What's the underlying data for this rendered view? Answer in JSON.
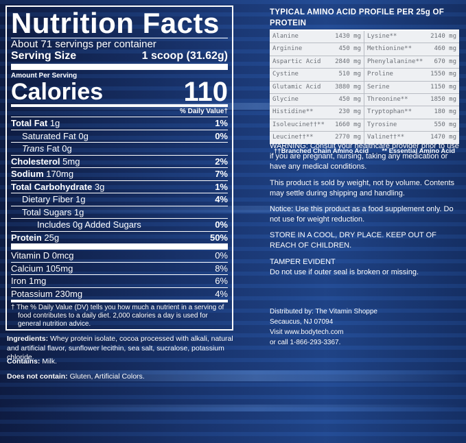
{
  "nutrition": {
    "title": "Nutrition Facts",
    "servings": "About 71 servings per container",
    "serving_size_label": "Serving Size",
    "serving_size_value": "1 scoop (31.62g)",
    "amount_per_serving": "Amount Per Serving",
    "calories_label": "Calories",
    "calories_value": "110",
    "dv_header": "% Daily Value†",
    "rows": [
      {
        "label": "Total Fat",
        "amount": "1g",
        "dv": "1%"
      },
      {
        "label": "Saturated Fat",
        "amount": "0g",
        "dv": "0%"
      },
      {
        "label": "Trans",
        "amount": "Fat 0g",
        "dv": ""
      },
      {
        "label": "Cholesterol",
        "amount": "5mg",
        "dv": "2%"
      },
      {
        "label": "Sodium",
        "amount": "170mg",
        "dv": "7%"
      },
      {
        "label": "Total Carbohydrate",
        "amount": "3g",
        "dv": "1%"
      },
      {
        "label": "Dietary Fiber",
        "amount": "1g",
        "dv": "4%"
      },
      {
        "label": "Total Sugars",
        "amount": "1g",
        "dv": ""
      },
      {
        "label": "Includes 0g Added Sugars",
        "amount": "",
        "dv": "0%"
      },
      {
        "label": "Protein",
        "amount": "25g",
        "dv": "50%"
      }
    ],
    "vitamins": [
      {
        "label": "Vitamin D 0mcg",
        "dv": "0%"
      },
      {
        "label": "Calcium 105mg",
        "dv": "8%"
      },
      {
        "label": "Iron 1mg",
        "dv": "6%"
      },
      {
        "label": "Potassium 230mg",
        "dv": "4%"
      }
    ],
    "footnote": "† The % Daily Value (DV) tells you how much a nutrient in a serving of food contributes to a daily diet. 2,000 calories a day is used for general nutrition advice."
  },
  "ingredients": {
    "label": "Ingredients:",
    "text": " Whey protein isolate, cocoa processed with alkali, natural and artificial flavor, sunflower lecithin, sea salt, sucralose, potassium chloride.",
    "contains_label": "Contains:",
    "contains_text": " Milk.",
    "not_contain_label": "Does not contain:",
    "not_contain_text": " Gluten, Artificial Colors."
  },
  "amino": {
    "title": "TYPICAL AMINO ACID PROFILE PER 25g OF PROTEIN",
    "rows": [
      [
        {
          "name": "Alanine",
          "val": "1430 mg"
        },
        {
          "name": "Lysine**",
          "val": "2140 mg"
        }
      ],
      [
        {
          "name": "Arginine",
          "val": "450 mg"
        },
        {
          "name": "Methionine**",
          "val": "460 mg"
        }
      ],
      [
        {
          "name": "Aspartic Acid",
          "val": "2840 mg"
        },
        {
          "name": "Phenylalanine**",
          "val": "670 mg"
        }
      ],
      [
        {
          "name": "Cystine",
          "val": "510 mg"
        },
        {
          "name": "Proline",
          "val": "1550 mg"
        }
      ],
      [
        {
          "name": "Glutamic Acid",
          "val": "3880 mg"
        },
        {
          "name": "Serine",
          "val": "1150 mg"
        }
      ],
      [
        {
          "name": "Glycine",
          "val": "450 mg"
        },
        {
          "name": "Threonine**",
          "val": "1850 mg"
        }
      ],
      [
        {
          "name": "Histidine**",
          "val": "230 mg"
        },
        {
          "name": "Tryptophan**",
          "val": "180 mg"
        }
      ],
      [
        {
          "name": "Isoleucine††**",
          "val": "1660 mg"
        },
        {
          "name": "Tyrosine",
          "val": "550 mg"
        }
      ],
      [
        {
          "name": "Leucine††**",
          "val": "2770 mg"
        },
        {
          "name": "Valine††**",
          "val": "1470 mg"
        }
      ]
    ],
    "legend_bcaa": "††Branched Chain Amino Acid",
    "legend_eaa": "** Essential Amino Acid"
  },
  "warnings": {
    "warning": "WARNING: Consult your healthcare provider prior to use if you are pregnant, nursing, taking any medication or have any medical conditions.",
    "weight": "This product is sold by weight, not by volume. Contents may settle during shipping and handling.",
    "notice": "Notice: Use this product as a food supplement only. Do not use for weight reduction.",
    "store": "STORE IN A COOL, DRY PLACE. KEEP OUT OF REACH OF CHILDREN.",
    "tamper_title": "TAMPER EVIDENT",
    "tamper": "Do not use if outer seal is broken or missing."
  },
  "distributor": {
    "line1": "Distributed by: The Vitamin Shoppe",
    "line2": "Secaucus, NJ 07094",
    "line3": "Visit www.bodytech.com",
    "line4": "or call 1-866-293-3367."
  }
}
